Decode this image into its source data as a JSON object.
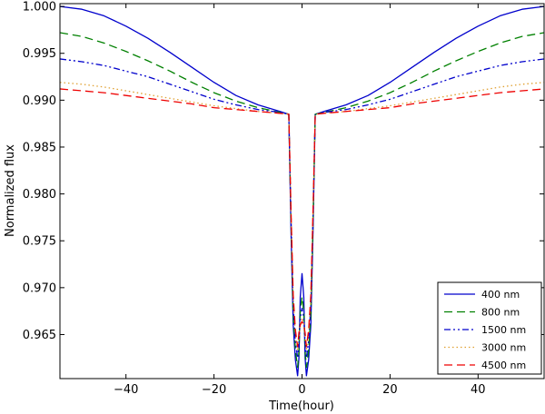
{
  "chart_data": {
    "type": "line",
    "title": "",
    "xlabel": "Time(hour)",
    "ylabel": "Normalized flux",
    "xlim": [
      -55,
      55
    ],
    "ylim": [
      0.9603,
      1.0003
    ],
    "xticks": [
      -40,
      -20,
      0,
      20,
      40
    ],
    "xtick_labels": [
      "−40",
      "−20",
      "0",
      "20",
      "40"
    ],
    "yticks": [
      0.965,
      0.97,
      0.975,
      0.98,
      0.985,
      0.99,
      0.995,
      1.0
    ],
    "ytick_labels": [
      "0.965",
      "0.970",
      "0.975",
      "0.980",
      "0.985",
      "0.990",
      "0.995",
      "1.000"
    ],
    "grid": false,
    "legend_position": "bottom-right",
    "shape": {
      "x": [
        -55,
        -50,
        -45,
        -40,
        -35,
        -30,
        -25,
        -20,
        -15,
        -10,
        -5,
        -3,
        -2.5,
        -2,
        -1.5,
        -1,
        -0.7,
        -0.4,
        0,
        0.4,
        0.7,
        1,
        1.5,
        2,
        2.5,
        3,
        5,
        10,
        15,
        20,
        25,
        30,
        35,
        40,
        45,
        50,
        55
      ]
    },
    "series": [
      {
        "name": "400 nm",
        "color": "#0000cc",
        "dash": "solid",
        "y": [
          1.0,
          0.9997,
          0.999,
          0.9979,
          0.9966,
          0.9951,
          0.9935,
          0.9919,
          0.9905,
          0.9895,
          0.9888,
          0.9885,
          0.976,
          0.966,
          0.9623,
          0.9606,
          0.9625,
          0.969,
          0.9715,
          0.969,
          0.9625,
          0.9606,
          0.9623,
          0.966,
          0.976,
          0.9885,
          0.9888,
          0.9895,
          0.9905,
          0.9919,
          0.9935,
          0.9951,
          0.9966,
          0.9979,
          0.999,
          0.9997,
          1.0
        ]
      },
      {
        "name": "800 nm",
        "color": "#008000",
        "dash": "9,5",
        "y": [
          0.9972,
          0.9968,
          0.9961,
          0.9952,
          0.9942,
          0.9931,
          0.9919,
          0.9908,
          0.9899,
          0.9892,
          0.9887,
          0.9885,
          0.977,
          0.967,
          0.9633,
          0.9615,
          0.9632,
          0.9675,
          0.969,
          0.9675,
          0.9632,
          0.9615,
          0.9633,
          0.967,
          0.977,
          0.9885,
          0.9887,
          0.9892,
          0.9899,
          0.9908,
          0.9919,
          0.9931,
          0.9942,
          0.9952,
          0.9961,
          0.9968,
          0.9972
        ]
      },
      {
        "name": "1500 nm",
        "color": "#0000cc",
        "dash": "7,3,2,3,2,3",
        "y": [
          0.9944,
          0.9941,
          0.9937,
          0.9931,
          0.9925,
          0.9917,
          0.9909,
          0.9901,
          0.9895,
          0.989,
          0.9887,
          0.9885,
          0.9775,
          0.968,
          0.9643,
          0.9625,
          0.9641,
          0.9668,
          0.9678,
          0.9668,
          0.9641,
          0.9625,
          0.9643,
          0.968,
          0.9775,
          0.9885,
          0.9887,
          0.989,
          0.9895,
          0.9901,
          0.9909,
          0.9917,
          0.9925,
          0.9931,
          0.9937,
          0.9941,
          0.9944
        ]
      },
      {
        "name": "3000 nm",
        "color": "#e0a030",
        "dash": "1.5,3",
        "y": [
          0.9919,
          0.9917,
          0.9914,
          0.991,
          0.9906,
          0.9902,
          0.9898,
          0.9894,
          0.9891,
          0.9888,
          0.9886,
          0.9885,
          0.978,
          0.9688,
          0.9651,
          0.9633,
          0.9648,
          0.9662,
          0.9668,
          0.9662,
          0.9648,
          0.9633,
          0.9651,
          0.9688,
          0.978,
          0.9885,
          0.9886,
          0.9888,
          0.9891,
          0.9894,
          0.9898,
          0.9902,
          0.9906,
          0.991,
          0.9914,
          0.9917,
          0.9919
        ]
      },
      {
        "name": "4500 nm",
        "color": "#ee0000",
        "dash": "9,5",
        "y": [
          0.9912,
          0.991,
          0.9908,
          0.9905,
          0.9902,
          0.9899,
          0.9896,
          0.9892,
          0.989,
          0.9888,
          0.9886,
          0.9885,
          0.9782,
          0.9692,
          0.9655,
          0.9637,
          0.9652,
          0.966,
          0.9664,
          0.966,
          0.9652,
          0.9637,
          0.9655,
          0.9692,
          0.9782,
          0.9885,
          0.9886,
          0.9888,
          0.989,
          0.9892,
          0.9896,
          0.9899,
          0.9902,
          0.9905,
          0.9908,
          0.991,
          0.9912
        ]
      }
    ]
  }
}
